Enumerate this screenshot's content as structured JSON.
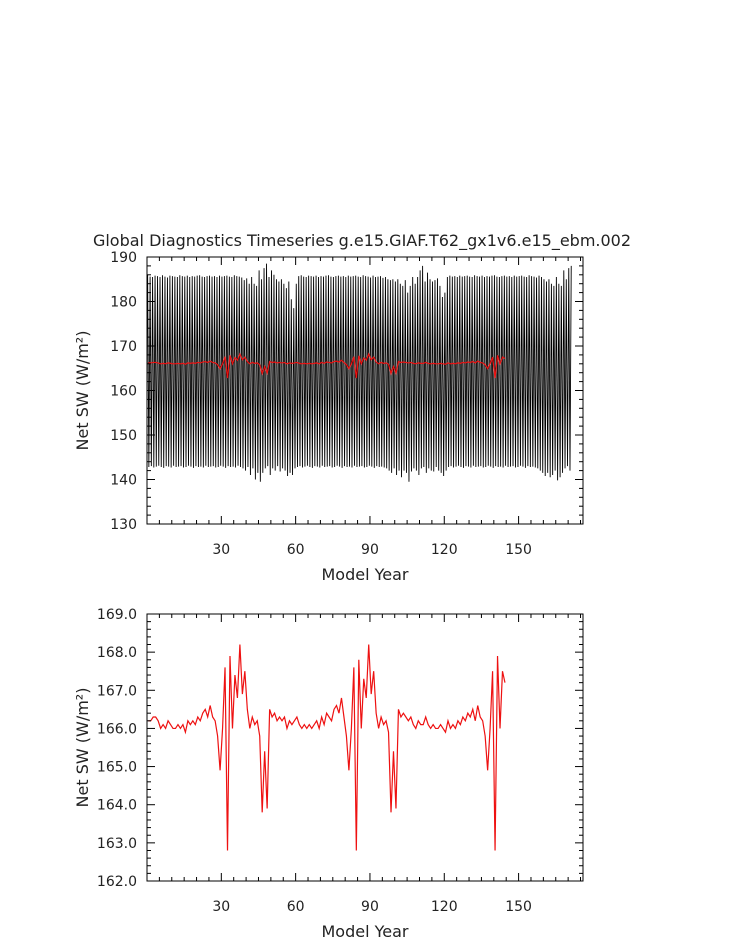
{
  "page": {
    "title": "Global Diagnostics Timeseries g.e15.GIAF.T62_gx1v6.e15_ebm.002"
  },
  "colors": {
    "monthly_series": "#000000",
    "annual_series": "#ee1111",
    "axes": "#000000",
    "background": "#ffffff"
  },
  "chart_data": [
    {
      "type": "line",
      "xlabel": "Model Year",
      "ylabel": "Net SW (W/m²)",
      "xlim": [
        0,
        176
      ],
      "ylim": [
        130,
        190
      ],
      "x_ticks": [
        30,
        60,
        90,
        120,
        150
      ],
      "y_ticks": [
        130,
        140,
        150,
        160,
        170,
        180,
        190
      ],
      "y_tick_format": "0",
      "grid": false,
      "series": [
        {
          "kind": "monthly_envelope",
          "color": "#000000",
          "x_start": 0.5,
          "x_end": 175.5,
          "points_per_year": 2,
          "annual_max": [
            186.0,
            185.6,
            185.5,
            185.8,
            185.7,
            185.5,
            185.9,
            185.6,
            185.4,
            185.8,
            185.7,
            185.6,
            185.5,
            185.9,
            185.7,
            185.6,
            185.8,
            185.5,
            185.7,
            185.6,
            185.8,
            185.9,
            185.6,
            185.5,
            185.7,
            185.8,
            185.6,
            185.7,
            185.5,
            185.8,
            185.6,
            185.7,
            185.8,
            185.6,
            185.5,
            185.9,
            185.7,
            185.6,
            185.4,
            184.8,
            185.2,
            184.0,
            185.5,
            184.0,
            183.5,
            187.0,
            185.0,
            187.5,
            188.5,
            185.5,
            187.0,
            186.0,
            185.0,
            184.5,
            185.0,
            184.0,
            183.0,
            184.5,
            180.5,
            178.5,
            184.0,
            185.7,
            185.9,
            185.6,
            185.5,
            185.8,
            185.7,
            185.6,
            185.8,
            185.5,
            185.7,
            185.6,
            185.8,
            185.9,
            185.6,
            185.5,
            185.7,
            185.8,
            185.6,
            185.7,
            185.5,
            185.8,
            185.6,
            185.7,
            185.8,
            185.6,
            185.5,
            185.9,
            185.7,
            185.6,
            185.4,
            185.8,
            185.5,
            185.6,
            185.7,
            185.3,
            185.5,
            185.0,
            184.8,
            185.0,
            184.5,
            185.0,
            184.0,
            183.5,
            184.8,
            182.0,
            183.5,
            185.5,
            184.0,
            185.5,
            187.0,
            188.0,
            184.5,
            186.5,
            185.0,
            184.5,
            184.8,
            185.2,
            183.5,
            181.0,
            182.0,
            185.5,
            185.8,
            185.6,
            185.7,
            185.5,
            185.8,
            185.6,
            185.7,
            185.8,
            185.6,
            185.5,
            185.9,
            185.7,
            185.6,
            185.8,
            185.5,
            185.7,
            185.6,
            185.8,
            185.9,
            185.6,
            185.5,
            185.7,
            185.8,
            185.6,
            185.7,
            185.5,
            185.8,
            185.6,
            185.7,
            185.8,
            185.6,
            185.5,
            185.9,
            185.7,
            185.6,
            185.4,
            185.8,
            185.5,
            185.0,
            184.5,
            185.0,
            184.0,
            183.5,
            185.5,
            184.0,
            183.5,
            187.0,
            185.0,
            187.5,
            188.0,
            185.5
          ],
          "annual_min": [
            142.8,
            143.0,
            142.7,
            142.9,
            143.1,
            142.8,
            142.6,
            143.0,
            142.9,
            142.7,
            143.1,
            142.8,
            142.9,
            143.0,
            142.7,
            142.8,
            143.1,
            142.9,
            142.6,
            143.0,
            142.8,
            142.9,
            142.7,
            143.1,
            142.8,
            142.9,
            143.0,
            142.7,
            142.8,
            143.1,
            142.9,
            142.6,
            143.0,
            142.8,
            142.9,
            142.7,
            143.1,
            142.8,
            142.5,
            142.0,
            142.8,
            141.0,
            142.5,
            140.0,
            141.5,
            139.5,
            141.5,
            142.5,
            143.0,
            141.0,
            142.5,
            142.0,
            143.0,
            141.8,
            142.5,
            142.0,
            140.8,
            141.5,
            141.0,
            142.5,
            142.8,
            143.0,
            142.7,
            142.9,
            143.1,
            142.8,
            142.6,
            143.0,
            142.9,
            142.7,
            143.1,
            142.8,
            142.9,
            143.0,
            142.7,
            142.8,
            143.1,
            142.9,
            142.6,
            143.0,
            142.8,
            142.9,
            142.7,
            143.1,
            142.8,
            142.9,
            143.0,
            142.7,
            142.8,
            143.1,
            142.9,
            142.6,
            143.0,
            142.8,
            142.9,
            142.7,
            142.5,
            142.0,
            141.5,
            142.5,
            141.0,
            142.0,
            140.5,
            142.0,
            141.5,
            139.5,
            141.8,
            142.5,
            142.0,
            141.0,
            142.5,
            142.8,
            141.5,
            142.5,
            142.0,
            141.8,
            142.8,
            142.0,
            141.5,
            140.8,
            142.0,
            142.8,
            143.0,
            142.7,
            142.9,
            143.1,
            142.8,
            142.6,
            143.0,
            142.9,
            142.7,
            143.1,
            142.8,
            142.9,
            143.0,
            142.7,
            142.8,
            143.1,
            142.9,
            142.6,
            143.0,
            142.8,
            142.9,
            142.7,
            143.1,
            142.8,
            142.9,
            143.0,
            142.7,
            142.8,
            143.1,
            142.9,
            142.6,
            143.0,
            142.8,
            142.9,
            142.7,
            142.5,
            142.0,
            141.5,
            140.8,
            141.5,
            140.5,
            141.0,
            142.0,
            139.8,
            140.5,
            141.5,
            142.5,
            143.0,
            142.0
          ]
        },
        {
          "kind": "annual_mean",
          "color": "#ee1111",
          "x_start": 0.5,
          "values": [
            166.2,
            166.2,
            166.3,
            166.3,
            166.2,
            166.0,
            166.1,
            166.0,
            166.2,
            166.1,
            166.0,
            166.0,
            166.1,
            166.0,
            166.1,
            165.9,
            166.2,
            166.1,
            166.2,
            166.1,
            166.3,
            166.2,
            166.4,
            166.5,
            166.3,
            166.6,
            166.3,
            166.2,
            165.8,
            164.9,
            166.0,
            167.6,
            162.8,
            167.9,
            166.0,
            167.4,
            166.8,
            168.2,
            166.9,
            167.5,
            166.5,
            166.0,
            166.3,
            166.1,
            166.2,
            165.8,
            163.8,
            165.4,
            163.9,
            166.5,
            166.3,
            166.4,
            166.2,
            166.3,
            166.2,
            166.3,
            166.0,
            166.2,
            166.1,
            166.2,
            166.3,
            166.1,
            166.0,
            166.1,
            166.0,
            166.1,
            166.0,
            166.1,
            166.2,
            166.0,
            166.3,
            166.1,
            166.4,
            166.3,
            166.2,
            166.5,
            166.6,
            166.4,
            166.8,
            166.3,
            165.8,
            164.9,
            166.0,
            167.6,
            162.8,
            167.8,
            166.0,
            167.3,
            166.8,
            168.2,
            166.9,
            167.5,
            166.4,
            166.0,
            166.3,
            166.1,
            166.2,
            165.9,
            163.8,
            165.4,
            163.9,
            166.5,
            166.3,
            166.4,
            166.3,
            166.2,
            166.3,
            166.1,
            166.0,
            166.2,
            166.1,
            166.1,
            166.3,
            166.1,
            166.0,
            166.1,
            166.0,
            166.0,
            166.1,
            166.0,
            165.9,
            166.2,
            166.0,
            166.1,
            166.0,
            166.2,
            166.1,
            166.3,
            166.2,
            166.4,
            166.3,
            166.5,
            166.2,
            166.6,
            166.3,
            166.2,
            165.8,
            164.9,
            166.0,
            167.5,
            162.8,
            167.9,
            166.0,
            167.5,
            167.2
          ]
        }
      ]
    },
    {
      "type": "line",
      "xlabel": "Model Year",
      "ylabel": "Net SW (W/m²)",
      "xlim": [
        0,
        176
      ],
      "ylim": [
        162,
        169
      ],
      "x_ticks": [
        30,
        60,
        90,
        120,
        150
      ],
      "y_ticks": [
        162,
        163,
        164,
        165,
        166,
        167,
        168,
        169
      ],
      "y_tick_format": "0.0",
      "grid": false,
      "series": [
        {
          "kind": "annual_mean",
          "color": "#ee1111",
          "x_start": 0.5,
          "values": [
            166.2,
            166.2,
            166.3,
            166.3,
            166.2,
            166.0,
            166.1,
            166.0,
            166.2,
            166.1,
            166.0,
            166.0,
            166.1,
            166.0,
            166.1,
            165.9,
            166.2,
            166.1,
            166.2,
            166.1,
            166.3,
            166.2,
            166.4,
            166.5,
            166.3,
            166.6,
            166.3,
            166.2,
            165.8,
            164.9,
            166.0,
            167.6,
            162.8,
            167.9,
            166.0,
            167.4,
            166.8,
            168.2,
            166.9,
            167.5,
            166.5,
            166.0,
            166.3,
            166.1,
            166.2,
            165.8,
            163.8,
            165.4,
            163.9,
            166.5,
            166.3,
            166.4,
            166.2,
            166.3,
            166.2,
            166.3,
            166.0,
            166.2,
            166.1,
            166.2,
            166.3,
            166.1,
            166.0,
            166.1,
            166.0,
            166.1,
            166.0,
            166.1,
            166.2,
            166.0,
            166.3,
            166.1,
            166.4,
            166.3,
            166.2,
            166.5,
            166.6,
            166.4,
            166.8,
            166.3,
            165.8,
            164.9,
            166.0,
            167.6,
            162.8,
            167.8,
            166.0,
            167.3,
            166.8,
            168.2,
            166.9,
            167.5,
            166.4,
            166.0,
            166.3,
            166.1,
            166.2,
            165.9,
            163.8,
            165.4,
            163.9,
            166.5,
            166.3,
            166.4,
            166.3,
            166.2,
            166.3,
            166.1,
            166.0,
            166.2,
            166.1,
            166.1,
            166.3,
            166.1,
            166.0,
            166.1,
            166.0,
            166.0,
            166.1,
            166.0,
            165.9,
            166.2,
            166.0,
            166.1,
            166.0,
            166.2,
            166.1,
            166.3,
            166.2,
            166.4,
            166.3,
            166.5,
            166.2,
            166.6,
            166.3,
            166.2,
            165.8,
            164.9,
            166.0,
            167.5,
            162.8,
            167.9,
            166.0,
            167.5,
            167.2
          ]
        }
      ]
    }
  ]
}
